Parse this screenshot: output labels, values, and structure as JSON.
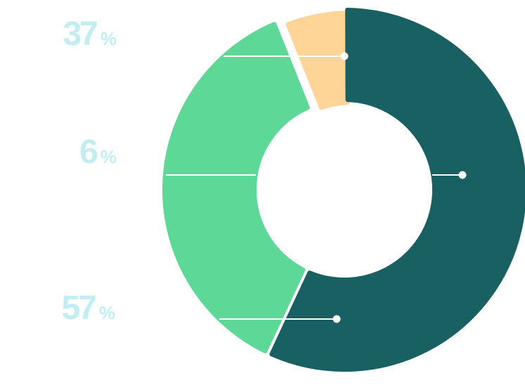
{
  "chart_data": {
    "type": "pie",
    "variant": "donut",
    "legend": "none",
    "slices": [
      {
        "label": "37%",
        "value": 37,
        "color": "#5ed896"
      },
      {
        "label": "6%",
        "value": 6,
        "color": "#ffd497"
      },
      {
        "label": "57%",
        "value": 57,
        "color": "#186062"
      }
    ],
    "percent_sign": "%"
  }
}
